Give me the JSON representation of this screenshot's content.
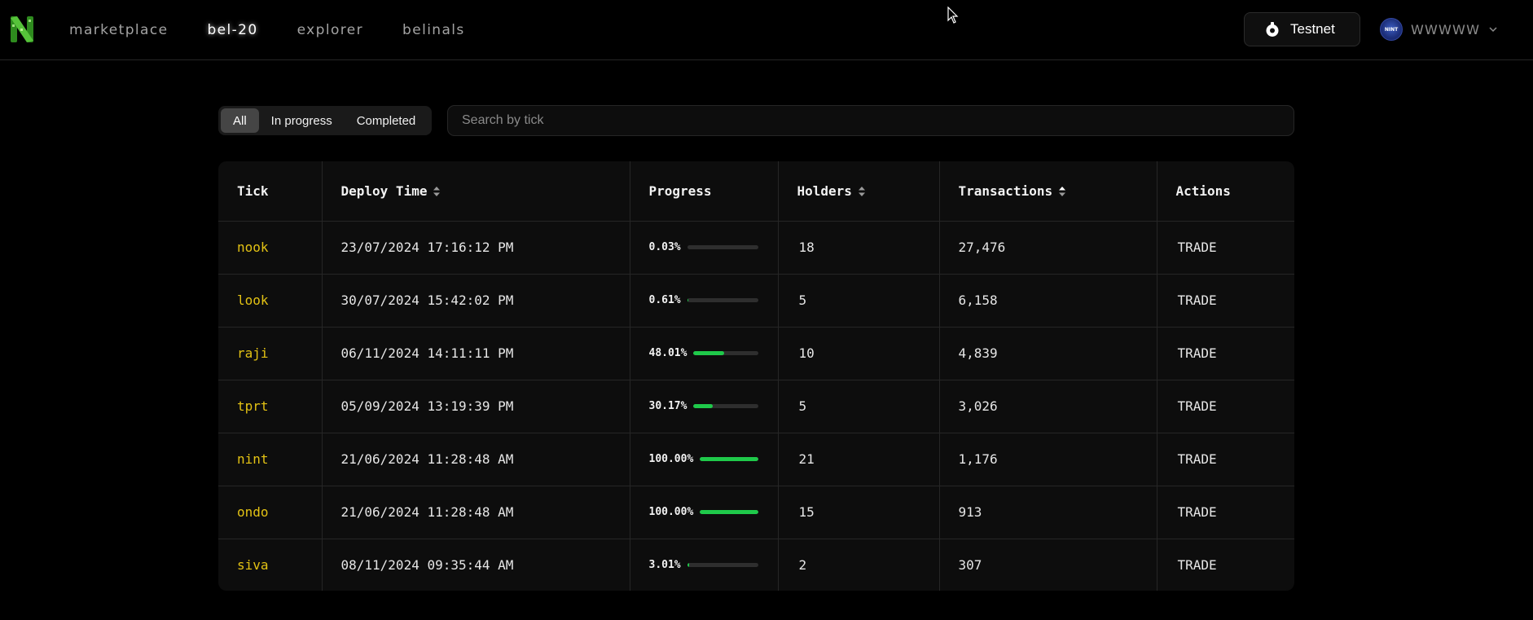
{
  "nav": {
    "links": [
      {
        "label": "marketplace",
        "active": false
      },
      {
        "label": "bel-20",
        "active": true
      },
      {
        "label": "explorer",
        "active": false
      },
      {
        "label": "belinals",
        "active": false
      }
    ],
    "network_button": {
      "label": "Testnet",
      "icon": "network-icon"
    },
    "user": {
      "name": "WWWWW",
      "avatar_text": "NINT"
    }
  },
  "filters": {
    "tabs": [
      {
        "label": "All",
        "active": true
      },
      {
        "label": "In progress",
        "active": false
      },
      {
        "label": "Completed",
        "active": false
      }
    ],
    "search_placeholder": "Search by tick"
  },
  "table": {
    "columns": [
      "Tick",
      "Deploy Time",
      "Progress",
      "Holders",
      "Transactions",
      "Actions"
    ],
    "rows": [
      {
        "tick": "nook",
        "deploy_time": "23/07/2024 17:16:12 PM",
        "progress": "0.03%",
        "progress_value": 0.0003,
        "holders": "18",
        "transactions": "27,476",
        "action": "TRADE"
      },
      {
        "tick": "look",
        "deploy_time": "30/07/2024 15:42:02 PM",
        "progress": "0.61%",
        "progress_value": 0.0061,
        "holders": "5",
        "transactions": "6,158",
        "action": "TRADE"
      },
      {
        "tick": "raji",
        "deploy_time": "06/11/2024 14:11:11 PM",
        "progress": "48.01%",
        "progress_value": 0.4801,
        "holders": "10",
        "transactions": "4,839",
        "action": "TRADE"
      },
      {
        "tick": "tprt",
        "deploy_time": "05/09/2024 13:19:39 PM",
        "progress": "30.17%",
        "progress_value": 0.3017,
        "holders": "5",
        "transactions": "3,026",
        "action": "TRADE"
      },
      {
        "tick": "nint",
        "deploy_time": "21/06/2024 11:28:48 AM",
        "progress": "100.00%",
        "progress_value": 1.0,
        "holders": "21",
        "transactions": "1,176",
        "action": "TRADE"
      },
      {
        "tick": "ondo",
        "deploy_time": "21/06/2024 11:28:48 AM",
        "progress": "100.00%",
        "progress_value": 1.0,
        "holders": "15",
        "transactions": "913",
        "action": "TRADE"
      },
      {
        "tick": "siva",
        "deploy_time": "08/11/2024 09:35:44 AM",
        "progress": "3.01%",
        "progress_value": 0.0301,
        "holders": "2",
        "transactions": "307",
        "action": "TRADE"
      }
    ]
  },
  "colors": {
    "tick": "#e3c214",
    "progress_fill": "#1fc94a",
    "progress_track": "#2e2e2e",
    "background": "#000000"
  }
}
